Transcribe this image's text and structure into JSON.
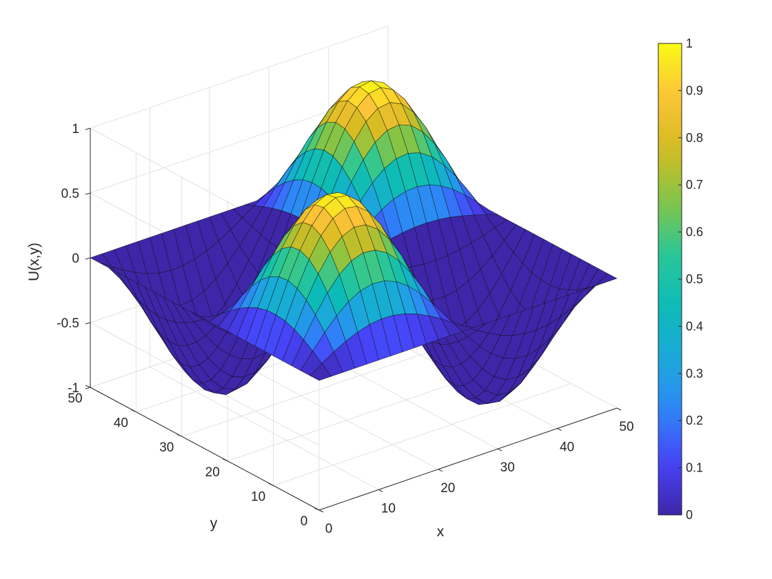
{
  "chart_data": {
    "type": "surface",
    "title": "",
    "xlabel": "x",
    "ylabel": "y",
    "zlabel": "U(x,y)",
    "xlim": [
      0,
      50
    ],
    "ylim": [
      0,
      50
    ],
    "zlim": [
      -1,
      1
    ],
    "x_ticks": [
      "0",
      "10",
      "20",
      "30",
      "40",
      "50"
    ],
    "y_ticks": [
      "0",
      "10",
      "20",
      "30",
      "40",
      "50"
    ],
    "z_ticks": [
      "-1",
      "-0.5",
      "0",
      "0.5",
      "1"
    ],
    "grid": true,
    "colormap": "parula",
    "colorbar": {
      "limits": [
        0,
        1
      ],
      "ticks": [
        "0",
        "0.1",
        "0.2",
        "0.3",
        "0.4",
        "0.5",
        "0.6",
        "0.7",
        "0.8",
        "0.9",
        "1"
      ],
      "placement": "right"
    },
    "surface": {
      "grid_points": 51,
      "mesh_step": 2,
      "function": "U(x,y) = sin(pi*x/25) * sin(pi*y/25)",
      "peaks": [
        {
          "x": 12.5,
          "y": 12.5,
          "z": 1
        },
        {
          "x": 37.5,
          "y": 37.5,
          "z": 1
        },
        {
          "x": 12.5,
          "y": 37.5,
          "z": -1
        },
        {
          "x": 37.5,
          "y": 12.5,
          "z": -1
        }
      ]
    },
    "note_colormap_anchors": [
      "#3e26a8",
      "#4743f8",
      "#2e87f7",
      "#1ba9da",
      "#0cbbb7",
      "#2bc797",
      "#84c546",
      "#d5bb21",
      "#fcc338",
      "#f9fb15"
    ]
  }
}
